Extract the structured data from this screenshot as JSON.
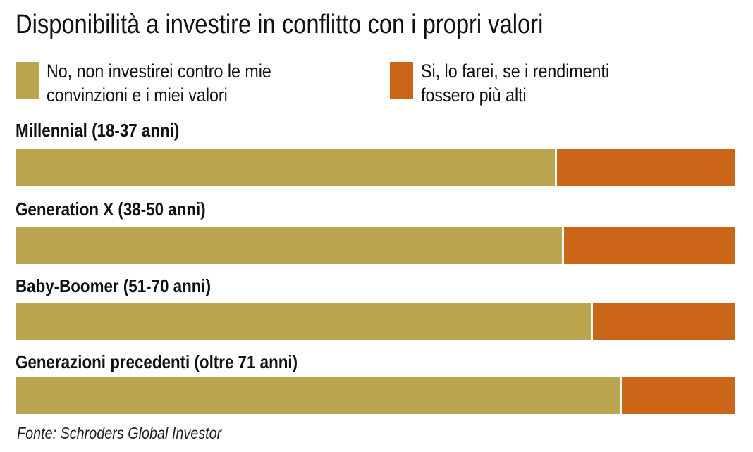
{
  "chart_data": {
    "type": "bar",
    "orientation": "horizontal",
    "stacked": true,
    "title": "Disponibilità a investire in conflitto con i propri valori",
    "categories": [
      "Millennial (18-37 anni)",
      "Generation X (38-50 anni)",
      "Baby-Boomer (51-70 anni)",
      "Generazioni precedenti (oltre 71 anni)"
    ],
    "series": [
      {
        "name": "No, non investirei contro le mie convinzioni e i miei valori",
        "color": "#BBA64F",
        "values": [
          75,
          76,
          80,
          84
        ]
      },
      {
        "name": "Si, lo farei, se i rendimenti fossero più alti",
        "color": "#CB6619",
        "values": [
          25,
          24,
          20,
          16
        ]
      }
    ],
    "xlim": [
      0,
      100
    ],
    "grid": false,
    "legend_placement": "top",
    "source": "Fonte: Schroders Global Investor"
  }
}
